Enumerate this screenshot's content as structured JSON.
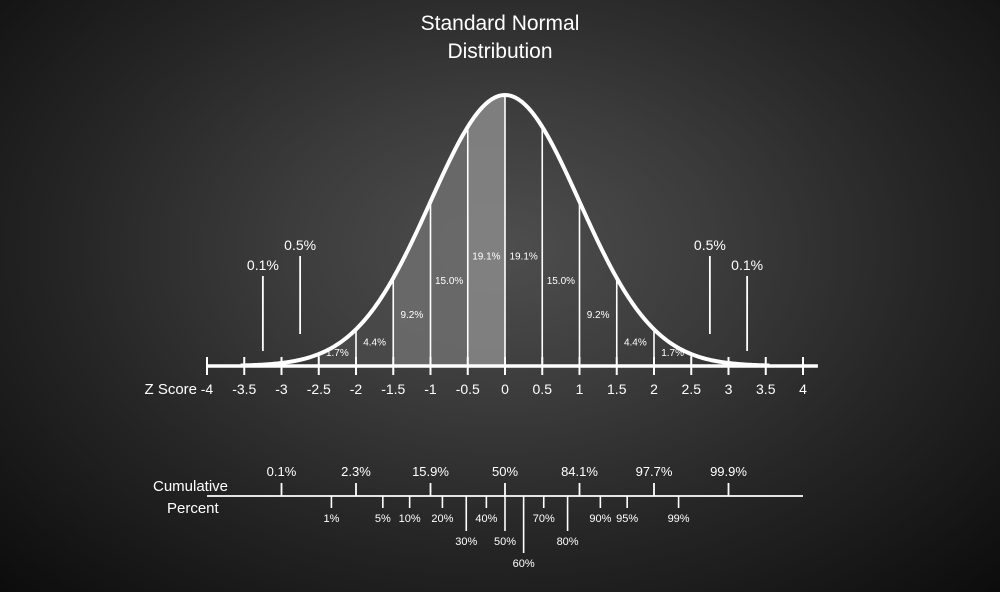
{
  "title": {
    "line1": "Standard Normal",
    "line2": "Distribution"
  },
  "colors": {
    "background": "#333333",
    "line": "#ffffff",
    "shade_light": "#8a8a8a",
    "shade_mid": "#6e6e6e",
    "shade_dark": "#4a4a4a"
  },
  "chart_data": {
    "type": "area",
    "z_axis": {
      "label": "Z Score",
      "ticks": [
        -4,
        -3.5,
        -3,
        -2.5,
        -2,
        -1.5,
        -1,
        -0.5,
        0,
        0.5,
        1,
        1.5,
        2,
        2.5,
        3,
        3.5,
        4
      ],
      "tick_labels": [
        "-4",
        "-3.5",
        "-3",
        "-2.5",
        "-2",
        "-1.5",
        "-1",
        "-0.5",
        "0",
        "0.5",
        "1",
        "1.5",
        "2",
        "2.5",
        "3",
        "3.5",
        "4"
      ],
      "range": [
        -4,
        4
      ]
    },
    "bands": [
      {
        "from": -3.5,
        "to": -3,
        "label": "",
        "shaded": false
      },
      {
        "from": -3,
        "to": -2.5,
        "label": "",
        "shaded": false
      },
      {
        "from": -2.5,
        "to": -2,
        "label": "1.7%",
        "shaded": true
      },
      {
        "from": -2,
        "to": -1.5,
        "label": "4.4%",
        "shaded": true
      },
      {
        "from": -1.5,
        "to": -1,
        "label": "9.2%",
        "shaded": true
      },
      {
        "from": -1,
        "to": -0.5,
        "label": "15.0%",
        "shaded": true
      },
      {
        "from": -0.5,
        "to": 0,
        "label": "19.1%",
        "shaded": true
      },
      {
        "from": 0,
        "to": 0.5,
        "label": "19.1%",
        "shaded": false
      },
      {
        "from": 0.5,
        "to": 1,
        "label": "15.0%",
        "shaded": false
      },
      {
        "from": 1,
        "to": 1.5,
        "label": "9.2%",
        "shaded": false
      },
      {
        "from": 1.5,
        "to": 2,
        "label": "4.4%",
        "shaded": false
      },
      {
        "from": 2,
        "to": 2.5,
        "label": "1.7%",
        "shaded": false
      },
      {
        "from": 2.5,
        "to": 3,
        "label": "",
        "shaded": false
      },
      {
        "from": 3,
        "to": 3.5,
        "label": "",
        "shaded": false
      }
    ],
    "tail_callouts": [
      {
        "z": -3.25,
        "label": "0.1%"
      },
      {
        "z": -2.75,
        "label": "0.5%"
      },
      {
        "z": 2.75,
        "label": "0.5%"
      },
      {
        "z": 3.25,
        "label": "0.1%"
      }
    ],
    "cumulative": {
      "label_line1": "Cumulative",
      "label_line2": "Percent",
      "upper_marks": [
        {
          "z": -3,
          "label": "0.1%"
        },
        {
          "z": -2,
          "label": "2.3%"
        },
        {
          "z": -1,
          "label": "15.9%"
        },
        {
          "z": 0,
          "label": "50%"
        },
        {
          "z": 1,
          "label": "84.1%"
        },
        {
          "z": 2,
          "label": "97.7%"
        },
        {
          "z": 3,
          "label": "99.9%"
        }
      ],
      "lower_marks": [
        {
          "z": -2.33,
          "label": "1%",
          "level": 1
        },
        {
          "z": -1.64,
          "label": "5%",
          "level": 1
        },
        {
          "z": -1.28,
          "label": "10%",
          "level": 1
        },
        {
          "z": -0.84,
          "label": "20%",
          "level": 1
        },
        {
          "z": -0.52,
          "label": "30%",
          "level": 2
        },
        {
          "z": -0.25,
          "label": "40%",
          "level": 1
        },
        {
          "z": 0,
          "label": "50%",
          "level": 2
        },
        {
          "z": 0.25,
          "label": "60%",
          "level": 3
        },
        {
          "z": 0.52,
          "label": "70%",
          "level": 1
        },
        {
          "z": 0.84,
          "label": "80%",
          "level": 2
        },
        {
          "z": 1.28,
          "label": "90%",
          "level": 1
        },
        {
          "z": 1.64,
          "label": "95%",
          "level": 1
        },
        {
          "z": 2.33,
          "label": "99%",
          "level": 1
        }
      ]
    }
  }
}
